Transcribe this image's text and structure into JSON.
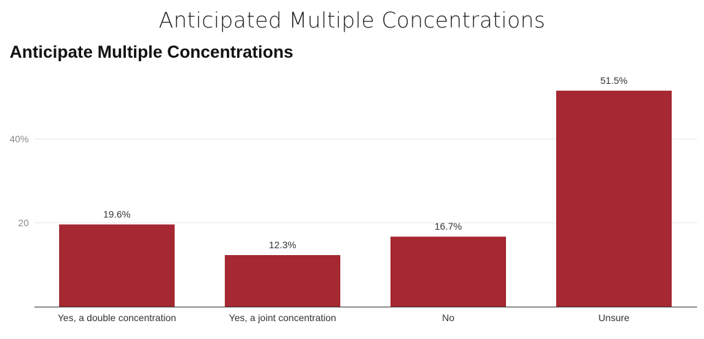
{
  "page": {
    "title": "Anticipated Multiple Concentrations"
  },
  "chart_data": {
    "type": "bar",
    "title": "Anticipate Multiple Concentrations",
    "categories": [
      "Yes, a double concentration",
      "Yes, a joint concentration",
      "No",
      "Unsure"
    ],
    "values": [
      19.6,
      12.3,
      16.7,
      51.5
    ],
    "data_labels": [
      "19.6%",
      "12.3%",
      "16.7%",
      "51.5%"
    ],
    "y_ticks": [
      {
        "value": 20,
        "label": "20"
      },
      {
        "value": 40,
        "label": "40%"
      }
    ],
    "ylim": [
      0,
      58
    ],
    "grid": true,
    "legend": "none",
    "xlabel": "",
    "ylabel": "",
    "colors": {
      "bar": "#a52832",
      "grid": "#e6e6e6",
      "axis": "#333333"
    }
  }
}
